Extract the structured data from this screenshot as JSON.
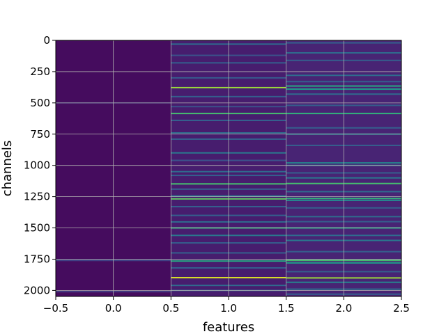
{
  "chart_data": {
    "type": "heatmap",
    "title": "",
    "xlabel": "features",
    "ylabel": "channels",
    "xlim": [
      -0.5,
      2.5
    ],
    "ylim": [
      2048,
      0
    ],
    "y_inverted": true,
    "grid": true,
    "colormap": "viridis",
    "x_ticks": [
      -0.5,
      0.0,
      0.5,
      1.0,
      1.5,
      2.0,
      2.5
    ],
    "x_tick_labels": [
      "−0.5",
      "0.0",
      "0.5",
      "1.0",
      "1.5",
      "2.0",
      "2.5"
    ],
    "y_ticks": [
      0,
      250,
      500,
      750,
      1000,
      1250,
      1500,
      1750,
      2000
    ],
    "y_tick_labels": [
      "0",
      "250",
      "500",
      "750",
      "1000",
      "1250",
      "1500",
      "1750",
      "2000"
    ],
    "columns": [
      {
        "feature": 0,
        "baseline": 0.03,
        "bands": [
          [
            500,
            0.12
          ],
          [
            1760,
            0.2
          ],
          [
            2010,
            0.18
          ]
        ]
      },
      {
        "feature": 1,
        "baseline": 0.08,
        "bands": [
          [
            30,
            0.35
          ],
          [
            120,
            0.25
          ],
          [
            180,
            0.3
          ],
          [
            300,
            0.28
          ],
          [
            378,
            0.85
          ],
          [
            450,
            0.3
          ],
          [
            530,
            0.25
          ],
          [
            585,
            0.7
          ],
          [
            640,
            0.3
          ],
          [
            740,
            0.35
          ],
          [
            790,
            0.3
          ],
          [
            900,
            0.4
          ],
          [
            960,
            0.25
          ],
          [
            1050,
            0.35
          ],
          [
            1080,
            0.3
          ],
          [
            1148,
            0.7
          ],
          [
            1190,
            0.3
          ],
          [
            1245,
            0.4
          ],
          [
            1268,
            0.75
          ],
          [
            1330,
            0.3
          ],
          [
            1400,
            0.3
          ],
          [
            1452,
            0.35
          ],
          [
            1500,
            0.65
          ],
          [
            1560,
            0.4
          ],
          [
            1620,
            0.3
          ],
          [
            1700,
            0.3
          ],
          [
            1765,
            0.6
          ],
          [
            1820,
            0.3
          ],
          [
            1898,
            0.95
          ],
          [
            1960,
            0.35
          ],
          [
            2000,
            0.3
          ]
        ]
      },
      {
        "feature": 2,
        "baseline": 0.1,
        "bands": [
          [
            20,
            0.3
          ],
          [
            100,
            0.35
          ],
          [
            160,
            0.3
          ],
          [
            280,
            0.35
          ],
          [
            330,
            0.3
          ],
          [
            365,
            0.6
          ],
          [
            390,
            0.55
          ],
          [
            430,
            0.35
          ],
          [
            520,
            0.3
          ],
          [
            585,
            0.65
          ],
          [
            700,
            0.3
          ],
          [
            750,
            0.4
          ],
          [
            840,
            0.3
          ],
          [
            980,
            0.45
          ],
          [
            1000,
            0.35
          ],
          [
            1060,
            0.3
          ],
          [
            1100,
            0.4
          ],
          [
            1145,
            0.7
          ],
          [
            1210,
            0.35
          ],
          [
            1265,
            0.65
          ],
          [
            1280,
            0.45
          ],
          [
            1340,
            0.3
          ],
          [
            1410,
            0.35
          ],
          [
            1450,
            0.3
          ],
          [
            1500,
            0.6
          ],
          [
            1560,
            0.35
          ],
          [
            1600,
            0.4
          ],
          [
            1690,
            0.3
          ],
          [
            1760,
            0.7
          ],
          [
            1780,
            0.55
          ],
          [
            1850,
            0.3
          ],
          [
            1900,
            0.85
          ],
          [
            1935,
            0.45
          ],
          [
            1990,
            0.35
          ],
          [
            2030,
            0.3
          ]
        ]
      }
    ]
  }
}
